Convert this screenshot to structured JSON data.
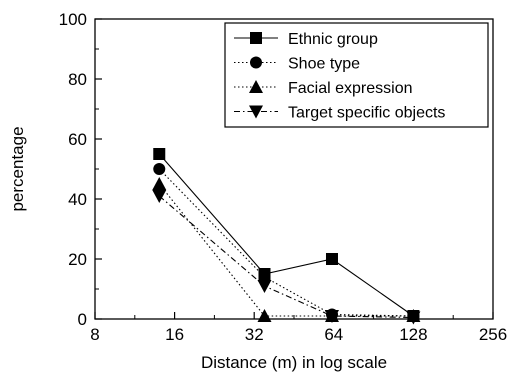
{
  "chart_data": {
    "type": "line",
    "title": "",
    "xlabel": "Distance (m) in log scale",
    "ylabel": "percentage",
    "x_scale": "log2",
    "xlim": [
      8,
      256
    ],
    "ylim": [
      0,
      100
    ],
    "x_ticks": [
      "8",
      "16",
      "32",
      "64",
      "128",
      "256"
    ],
    "y_ticks": [
      "0",
      "20",
      "40",
      "60",
      "80",
      "100"
    ],
    "grid": false,
    "legend_position": "top-right",
    "series": [
      {
        "name": "Ethnic group",
        "marker": "square",
        "line_style": "solid",
        "x": [
          14,
          35,
          63,
          128
        ],
        "y": [
          55,
          15,
          20,
          1
        ]
      },
      {
        "name": "Shoe type",
        "marker": "circle",
        "line_style": "dotted",
        "x": [
          14,
          35,
          63,
          128
        ],
        "y": [
          50,
          14,
          1.5,
          1
        ]
      },
      {
        "name": "Facial expression",
        "marker": "triangle-up",
        "line_style": "dotted",
        "x": [
          14,
          35,
          63,
          128
        ],
        "y": [
          45,
          1,
          1,
          1
        ]
      },
      {
        "name": "Target specific objects",
        "marker": "triangle-down",
        "line_style": "dashdot",
        "x": [
          14,
          35,
          63,
          128
        ],
        "y": [
          41,
          11,
          1,
          0.5
        ]
      }
    ]
  }
}
